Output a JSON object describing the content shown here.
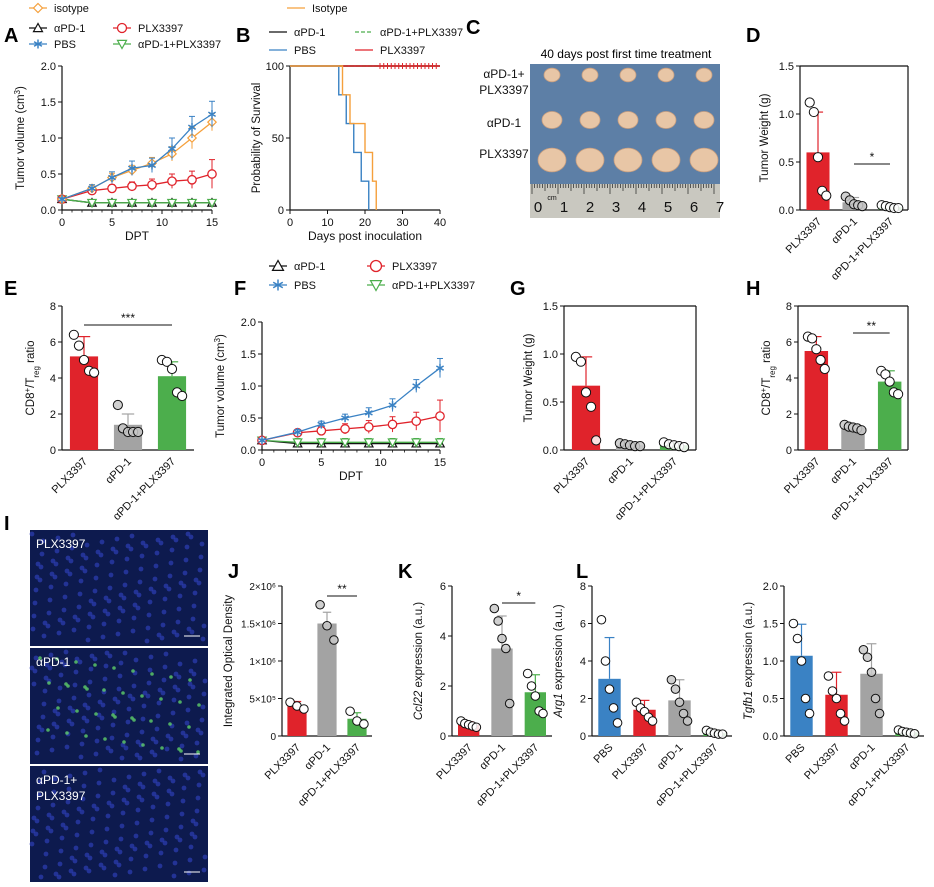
{
  "colors": {
    "red": "#e0232b",
    "gray": "#a3a3a3",
    "green": "#4cae4c",
    "blue": "#3a82c4",
    "orange": "#f5a03c",
    "black": "#111111",
    "micro_bg": "#0d1a4e"
  },
  "panels": {
    "A": "A",
    "B": "B",
    "C": "C",
    "D": "D",
    "E": "E",
    "F": "F",
    "G": "G",
    "H": "H",
    "I": "I",
    "J": "J",
    "K": "K",
    "L": "L"
  },
  "panel_C": {
    "title": "40 days post first time treatment",
    "row_labels": [
      [
        "αPD-1+",
        "PLX3397"
      ],
      [
        "αPD-1"
      ],
      [
        "PLX3397"
      ]
    ],
    "ruler_digits": [
      "0",
      "1",
      "2",
      "3",
      "4",
      "5",
      "6",
      "7"
    ],
    "ruler_unit": "cm"
  },
  "panel_I": {
    "labels": [
      [
        "PLX3397"
      ],
      [
        "αPD-1"
      ],
      [
        "αPD-1+",
        "PLX3397"
      ]
    ]
  },
  "chart_data": [
    {
      "id": "A",
      "type": "line",
      "xlabel": "DPT",
      "ylabel": "Tumor volume (cm³)",
      "xlim": [
        0,
        15
      ],
      "ylim": [
        0,
        2.0
      ],
      "xticks": [
        0,
        5,
        10,
        15
      ],
      "yticks": [
        0.0,
        0.5,
        1.0,
        1.5,
        2.0
      ],
      "ytick_labels": [
        "0.0",
        "0.5",
        "1.0",
        "1.5",
        "2.0"
      ],
      "legend": [
        {
          "name": "isotype",
          "marker": "diamond",
          "color": "#f5a03c"
        },
        {
          "name": "αPD-1",
          "marker": "triangle",
          "color": "#111111"
        },
        {
          "name": "PLX3397",
          "marker": "circle",
          "color": "#e0232b"
        },
        {
          "name": "PBS",
          "marker": "star",
          "color": "#3a82c4"
        },
        {
          "name": "αPD-1+PLX3397",
          "marker": "tridown",
          "color": "#4cae4c"
        }
      ],
      "x": [
        0,
        3,
        5,
        7,
        9,
        11,
        13,
        15
      ],
      "series": [
        {
          "name": "αPD-1",
          "marker": "triangle",
          "color": "#111111",
          "values": [
            0.15,
            0.1,
            0.1,
            0.1,
            0.1,
            0.1,
            0.1,
            0.1
          ],
          "err": [
            0.02,
            0.01,
            0.01,
            0.01,
            0.01,
            0.01,
            0.01,
            0.01
          ]
        },
        {
          "name": "αPD-1+PLX3397",
          "marker": "tridown",
          "color": "#4cae4c",
          "values": [
            0.15,
            0.1,
            0.1,
            0.1,
            0.1,
            0.1,
            0.1,
            0.1
          ],
          "err": [
            0.02,
            0.01,
            0.01,
            0.01,
            0.01,
            0.01,
            0.01,
            0.01
          ]
        },
        {
          "name": "PLX3397",
          "marker": "circle",
          "color": "#e0232b",
          "values": [
            0.15,
            0.27,
            0.3,
            0.33,
            0.35,
            0.4,
            0.42,
            0.5
          ],
          "err": [
            0.02,
            0.05,
            0.05,
            0.06,
            0.08,
            0.1,
            0.12,
            0.2
          ]
        },
        {
          "name": "isotype",
          "marker": "diamond",
          "color": "#f5a03c",
          "values": [
            0.15,
            0.3,
            0.45,
            0.55,
            0.65,
            0.78,
            1.0,
            1.22
          ],
          "err": [
            0.02,
            0.05,
            0.06,
            0.07,
            0.08,
            0.1,
            0.15,
            0.12
          ]
        },
        {
          "name": "PBS",
          "marker": "star",
          "color": "#3a82c4",
          "values": [
            0.15,
            0.3,
            0.45,
            0.58,
            0.62,
            0.85,
            1.15,
            1.33
          ],
          "err": [
            0.02,
            0.05,
            0.08,
            0.1,
            0.1,
            0.15,
            0.15,
            0.18
          ]
        }
      ]
    },
    {
      "id": "B",
      "type": "line",
      "subtype": "survival",
      "xlabel": "Days post inoculation",
      "ylabel": "Probability of Survival",
      "xlim": [
        0,
        40
      ],
      "ylim": [
        0,
        100
      ],
      "xticks": [
        0,
        10,
        20,
        30,
        40
      ],
      "yticks": [
        0,
        50,
        100
      ],
      "legend": [
        {
          "name": "Isotype",
          "color": "#f5a03c"
        },
        {
          "name": "αPD-1",
          "color": "#111111"
        },
        {
          "name": "αPD-1+PLX3397",
          "color": "#4cae4c",
          "dashed": true
        },
        {
          "name": "PBS",
          "color": "#3a82c4"
        },
        {
          "name": "PLX3397",
          "color": "#e0232b"
        }
      ],
      "series": [
        {
          "name": "αPD-1",
          "color": "#111111",
          "steps": [
            [
              0,
              100
            ],
            [
              40,
              100
            ]
          ]
        },
        {
          "name": "αPD-1+PLX3397",
          "color": "#4cae4c",
          "dashed": true,
          "steps": [
            [
              0,
              100
            ],
            [
              40,
              100
            ]
          ]
        },
        {
          "name": "PLX3397",
          "color": "#e0232b",
          "steps": [
            [
              0,
              100
            ],
            [
              40,
              100
            ]
          ]
        },
        {
          "name": "PBS",
          "color": "#3a82c4",
          "steps": [
            [
              0,
              100
            ],
            [
              13,
              100
            ],
            [
              13,
              80
            ],
            [
              15,
              80
            ],
            [
              15,
              60
            ],
            [
              17,
              60
            ],
            [
              17,
              40
            ],
            [
              19,
              40
            ],
            [
              19,
              20
            ],
            [
              21,
              20
            ],
            [
              21,
              0
            ]
          ]
        },
        {
          "name": "Isotype",
          "color": "#f5a03c",
          "steps": [
            [
              0,
              100
            ],
            [
              14,
              100
            ],
            [
              14,
              80
            ],
            [
              16,
              80
            ],
            [
              16,
              60
            ],
            [
              20,
              60
            ],
            [
              20,
              40
            ],
            [
              22,
              40
            ],
            [
              22,
              20
            ],
            [
              23,
              20
            ],
            [
              23,
              0
            ]
          ]
        }
      ],
      "censor_ticks": [
        24,
        25,
        26,
        27,
        28,
        29,
        30,
        31,
        32,
        33,
        34,
        35,
        36,
        37,
        38,
        39
      ]
    },
    {
      "id": "D",
      "type": "bar",
      "ylabel": "Tumor Weight (g)",
      "categories": [
        "PLX3397",
        "αPD-1",
        "αPD-1+PLX3397"
      ],
      "values": [
        0.6,
        0.08,
        0.03
      ],
      "err": [
        0.42,
        0.05,
        0.02
      ],
      "ylim": [
        0,
        1.5
      ],
      "yticks": [
        0.0,
        0.5,
        1.0,
        1.5
      ],
      "ytick_labels": [
        "0.0",
        "0.5",
        "1.0",
        "1.5"
      ],
      "colors": [
        "#e0232b",
        "#a3a3a3",
        "#4cae4c"
      ],
      "points": [
        [
          1.12,
          1.02,
          0.55,
          0.2,
          0.15
        ],
        [
          0.14,
          0.1,
          0.06,
          0.05,
          0.04
        ],
        [
          0.05,
          0.04,
          0.03,
          0.02,
          0.02
        ]
      ],
      "significance": [
        {
          "from": 1,
          "to": 2,
          "label": "*"
        }
      ]
    },
    {
      "id": "E",
      "type": "bar",
      "ylabel": "CD8⁺/Treg ratio",
      "categories": [
        "PLX3397",
        "αPD-1",
        "αPD-1+PLX3397"
      ],
      "values": [
        5.2,
        1.4,
        4.1
      ],
      "err": [
        1.1,
        0.6,
        0.8
      ],
      "ylim": [
        0,
        8
      ],
      "yticks": [
        0,
        2,
        4,
        6,
        8
      ],
      "ytick_labels": [
        "0",
        "2",
        "4",
        "6",
        "8"
      ],
      "colors": [
        "#e0232b",
        "#a3a3a3",
        "#4cae4c"
      ],
      "points": [
        [
          6.4,
          5.8,
          5.0,
          4.4,
          4.3
        ],
        [
          2.5,
          1.2,
          1.0,
          1.0,
          1.0
        ],
        [
          5.0,
          4.9,
          4.5,
          3.2,
          3.0
        ]
      ],
      "significance": [
        {
          "from": 0,
          "to": 2,
          "label": "***"
        }
      ]
    },
    {
      "id": "F",
      "type": "line",
      "xlabel": "DPT",
      "ylabel": "Tumor volume (cm³)",
      "xlim": [
        0,
        15
      ],
      "ylim": [
        0,
        2.0
      ],
      "xticks": [
        0,
        5,
        10,
        15
      ],
      "yticks": [
        0.0,
        0.5,
        1.0,
        1.5,
        2.0
      ],
      "ytick_labels": [
        "0.0",
        "0.5",
        "1.0",
        "1.5",
        "2.0"
      ],
      "legend": [
        {
          "name": "αPD-1",
          "marker": "triangle",
          "color": "#111111"
        },
        {
          "name": "PLX3397",
          "marker": "circle",
          "color": "#e0232b"
        },
        {
          "name": "PBS",
          "marker": "star",
          "color": "#3a82c4"
        },
        {
          "name": "αPD-1+PLX3397",
          "marker": "tridown",
          "color": "#4cae4c"
        }
      ],
      "x": [
        0,
        3,
        5,
        7,
        9,
        11,
        13,
        15
      ],
      "series": [
        {
          "name": "αPD-1",
          "marker": "triangle",
          "color": "#111111",
          "values": [
            0.15,
            0.1,
            0.1,
            0.1,
            0.1,
            0.1,
            0.1,
            0.1
          ],
          "err": [
            0.02,
            0.01,
            0.01,
            0.01,
            0.01,
            0.01,
            0.01,
            0.01
          ]
        },
        {
          "name": "αPD-1+PLX3397",
          "marker": "tridown",
          "color": "#4cae4c",
          "values": [
            0.15,
            0.12,
            0.12,
            0.12,
            0.12,
            0.12,
            0.12,
            0.12
          ],
          "err": [
            0.03,
            0.06,
            0.06,
            0.06,
            0.06,
            0.06,
            0.06,
            0.06
          ]
        },
        {
          "name": "PLX3397",
          "marker": "circle",
          "color": "#e0232b",
          "values": [
            0.15,
            0.27,
            0.3,
            0.33,
            0.36,
            0.4,
            0.45,
            0.53
          ],
          "err": [
            0.02,
            0.05,
            0.06,
            0.08,
            0.1,
            0.12,
            0.14,
            0.25
          ]
        },
        {
          "name": "PBS",
          "marker": "star",
          "color": "#3a82c4",
          "values": [
            0.15,
            0.28,
            0.4,
            0.5,
            0.58,
            0.7,
            1.0,
            1.28
          ],
          "err": [
            0.02,
            0.04,
            0.05,
            0.06,
            0.08,
            0.1,
            0.1,
            0.15
          ]
        }
      ]
    },
    {
      "id": "G",
      "type": "bar",
      "ylabel": "Tumor Weight (g)",
      "categories": [
        "PLX3397",
        "αPD-1",
        "αPD-1+PLX3397"
      ],
      "values": [
        0.67,
        0.05,
        0.05
      ],
      "err": [
        0.3,
        0.02,
        0.02
      ],
      "ylim": [
        0,
        1.5
      ],
      "yticks": [
        0.0,
        0.5,
        1.0,
        1.5
      ],
      "ytick_labels": [
        "0.0",
        "0.5",
        "1.0",
        "1.5"
      ],
      "colors": [
        "#e0232b",
        "#a3a3a3",
        "#4cae4c"
      ],
      "points": [
        [
          0.97,
          0.92,
          0.6,
          0.45,
          0.1
        ],
        [
          0.07,
          0.06,
          0.05,
          0.04,
          0.04
        ],
        [
          0.08,
          0.06,
          0.05,
          0.04,
          0.03
        ]
      ],
      "significance": []
    },
    {
      "id": "H",
      "type": "bar",
      "ylabel": "CD8⁺/Treg ratio",
      "categories": [
        "PLX3397",
        "αPD-1",
        "αPD-1+PLX3397"
      ],
      "values": [
        5.5,
        1.25,
        3.8
      ],
      "err": [
        0.8,
        0.15,
        0.6
      ],
      "ylim": [
        0,
        8
      ],
      "yticks": [
        0,
        2,
        4,
        6,
        8
      ],
      "ytick_labels": [
        "0",
        "2",
        "4",
        "6",
        "8"
      ],
      "colors": [
        "#e0232b",
        "#a3a3a3",
        "#4cae4c"
      ],
      "points": [
        [
          6.3,
          6.2,
          5.6,
          5.0,
          4.5
        ],
        [
          1.4,
          1.3,
          1.25,
          1.2,
          1.1
        ],
        [
          4.4,
          4.2,
          3.8,
          3.2,
          3.1
        ]
      ],
      "significance": [
        {
          "from": 1,
          "to": 2,
          "label": "**"
        }
      ]
    },
    {
      "id": "J",
      "type": "bar",
      "ylabel": "Integrated Optical Density",
      "categories": [
        "PLX3397",
        "αPD-1",
        "αPD-1+PLX3397"
      ],
      "values": [
        400000,
        1500000,
        230000
      ],
      "err": [
        60000,
        150000,
        80000
      ],
      "ylim": [
        0,
        2000000
      ],
      "yticks": [
        0,
        500000,
        1000000,
        1500000,
        2000000
      ],
      "ytick_labels": [
        "0",
        "5×10⁵",
        "1×10⁶",
        "1.5×10⁶",
        "2×10⁶"
      ],
      "colors": [
        "#e0232b",
        "#a3a3a3",
        "#4cae4c"
      ],
      "points": [
        [
          450000,
          400000,
          360000
        ],
        [
          1750000,
          1470000,
          1280000
        ],
        [
          330000,
          200000,
          160000
        ]
      ],
      "significance": [
        {
          "from": 1,
          "to": 2,
          "label": "**"
        }
      ]
    },
    {
      "id": "K",
      "type": "bar",
      "ylabel": "Ccl22 expression (a.u.)",
      "categories": [
        "PLX3397",
        "αPD-1",
        "αPD-1+PLX3397"
      ],
      "values": [
        0.45,
        3.5,
        1.75
      ],
      "err": [
        0.12,
        1.3,
        0.7
      ],
      "ylim": [
        0,
        6
      ],
      "yticks": [
        0,
        2,
        4,
        6
      ],
      "ytick_labels": [
        "0",
        "2",
        "4",
        "6"
      ],
      "colors": [
        "#e0232b",
        "#a3a3a3",
        "#4cae4c"
      ],
      "points": [
        [
          0.6,
          0.5,
          0.45,
          0.4,
          0.35
        ],
        [
          5.1,
          4.6,
          3.9,
          3.5,
          1.3
        ],
        [
          2.5,
          2.0,
          1.6,
          1.0,
          0.9
        ]
      ],
      "significance": [
        {
          "from": 1,
          "to": 2,
          "label": "*"
        }
      ]
    },
    {
      "id": "L1",
      "type": "bar",
      "ylabel": "Arg1 expression (a.u.)",
      "categories": [
        "PBS",
        "PLX3397",
        "αPD-1",
        "αPD-1+PLX3397"
      ],
      "values": [
        3.05,
        1.4,
        1.9,
        0.15
      ],
      "err": [
        2.2,
        0.5,
        1.1,
        0.1
      ],
      "ylim": [
        0,
        8
      ],
      "yticks": [
        0,
        2,
        4,
        6,
        8
      ],
      "ytick_labels": [
        "0",
        "2",
        "4",
        "6",
        "8"
      ],
      "colors": [
        "#3a82c4",
        "#e0232b",
        "#a3a3a3",
        "#4cae4c"
      ],
      "points": [
        [
          6.2,
          4.0,
          2.5,
          1.5,
          0.7
        ],
        [
          1.8,
          1.5,
          1.3,
          1.0,
          0.8
        ],
        [
          3.0,
          2.5,
          1.8,
          1.2,
          0.8
        ],
        [
          0.3,
          0.2,
          0.15,
          0.1,
          0.1
        ]
      ],
      "significance": []
    },
    {
      "id": "L2",
      "type": "bar",
      "ylabel": "Tgfb1 expression (a.u.)",
      "categories": [
        "PBS",
        "PLX3397",
        "αPD-1",
        "αPD-1+PLX3397"
      ],
      "values": [
        1.07,
        0.55,
        0.83,
        0.05
      ],
      "err": [
        0.42,
        0.3,
        0.4,
        0.03
      ],
      "ylim": [
        0,
        2.0
      ],
      "yticks": [
        0.0,
        0.5,
        1.0,
        1.5,
        2.0
      ],
      "ytick_labels": [
        "0.0",
        "0.5",
        "1.0",
        "1.5",
        "2.0"
      ],
      "colors": [
        "#3a82c4",
        "#e0232b",
        "#a3a3a3",
        "#4cae4c"
      ],
      "points": [
        [
          1.5,
          1.3,
          1.0,
          0.5,
          0.3
        ],
        [
          0.8,
          0.6,
          0.5,
          0.3,
          0.2
        ],
        [
          1.15,
          1.05,
          0.85,
          0.5,
          0.3
        ],
        [
          0.08,
          0.06,
          0.05,
          0.04,
          0.03
        ]
      ],
      "significance": []
    }
  ]
}
